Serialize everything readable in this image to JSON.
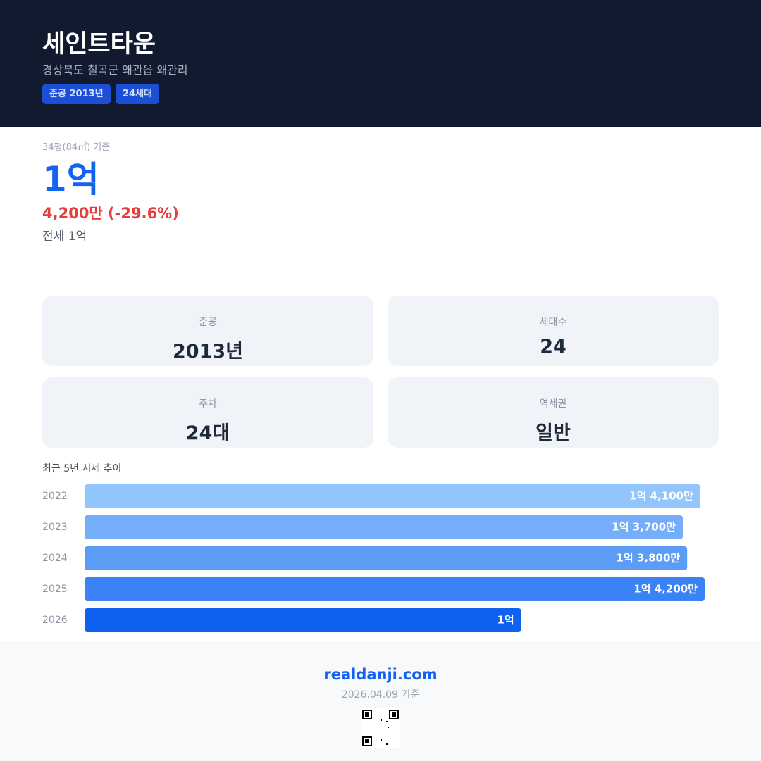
{
  "header": {
    "title": "세인트타운",
    "address": "경상북도 칠곡군 왜관읍 왜관리",
    "badges": [
      "준공 2013년",
      "24세대"
    ]
  },
  "price": {
    "basis": "34평(84㎡) 기준",
    "main": "1억",
    "change": "4,200만 (-29.6%)",
    "jeonse": "전세 1억"
  },
  "stats": [
    {
      "label": "준공",
      "value": "2013년"
    },
    {
      "label": "세대수",
      "value": "24"
    },
    {
      "label": "주차",
      "value": "24대"
    },
    {
      "label": "역세권",
      "value": "일반"
    }
  ],
  "chart_data": {
    "type": "bar",
    "orientation": "horizontal",
    "title": "최근 5년 시세 추이",
    "categories": [
      "2022",
      "2023",
      "2024",
      "2025",
      "2026"
    ],
    "values": [
      14100,
      13700,
      13800,
      14200,
      10000
    ],
    "value_labels": [
      "1억 4,100만",
      "1억 3,700만",
      "1억 3,800만",
      "1억 4,200만",
      "1억"
    ],
    "colors": [
      "#93c5fd",
      "#76adf9",
      "#5b9cf6",
      "#3b82f6",
      "#0f62f0"
    ]
  },
  "footer": {
    "site": "realdanji.com",
    "date": "2026.04.09 기준"
  }
}
